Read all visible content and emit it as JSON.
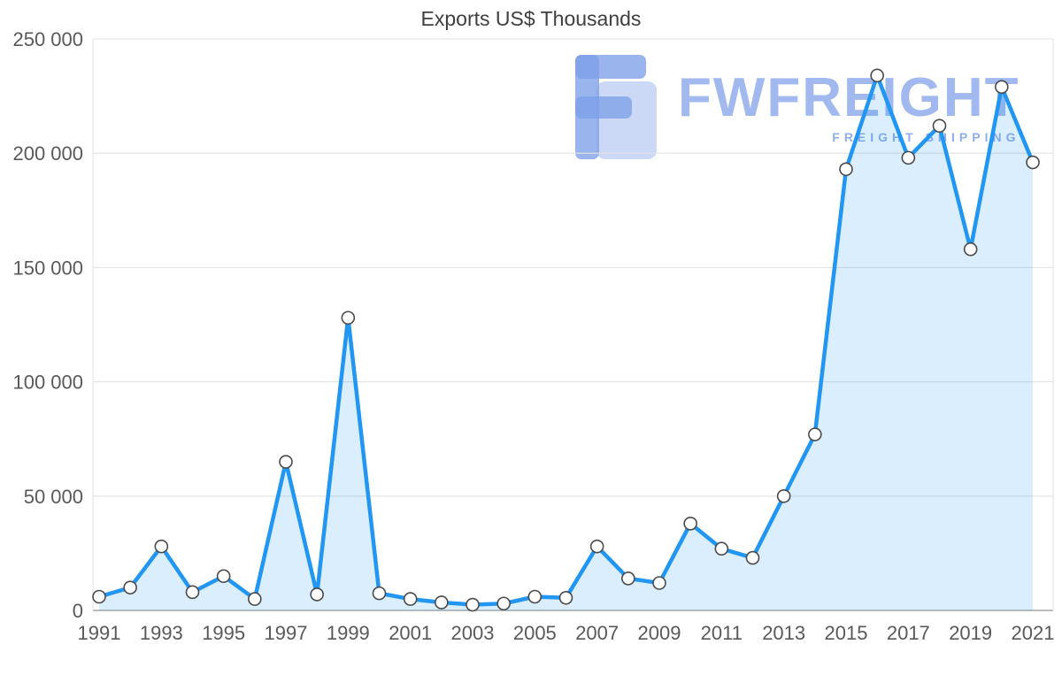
{
  "chart_data": {
    "type": "line",
    "title": "Exports US$ Thousands",
    "x": [
      1991,
      1992,
      1993,
      1994,
      1995,
      1996,
      1997,
      1998,
      1999,
      2000,
      2001,
      2002,
      2003,
      2004,
      2005,
      2006,
      2007,
      2008,
      2009,
      2010,
      2011,
      2012,
      2013,
      2014,
      2015,
      2016,
      2017,
      2018,
      2019,
      2020,
      2021
    ],
    "series": [
      {
        "name": "Exports US$ Thousands",
        "values": [
          6000,
          10000,
          28000,
          8000,
          15000,
          5000,
          65000,
          7000,
          128000,
          7500,
          5000,
          3500,
          2500,
          3000,
          6000,
          5500,
          28000,
          14000,
          12000,
          38000,
          27000,
          23000,
          50000,
          77000,
          193000,
          234000,
          198000,
          212000,
          158000,
          229000,
          196000
        ]
      }
    ],
    "xlabel": "",
    "ylabel": "",
    "ylim": [
      0,
      250000
    ],
    "ytick_step": 50000,
    "ytick_labels": [
      "0",
      "50 000",
      "100 000",
      "150 000",
      "200 000",
      "250 000"
    ],
    "xtick_step": 2,
    "xtick_labels": [
      "1991",
      "1993",
      "1995",
      "1997",
      "1999",
      "2001",
      "2003",
      "2005",
      "2007",
      "2009",
      "2011",
      "2013",
      "2015",
      "2017",
      "2019",
      "2021"
    ],
    "grid": true,
    "legend_position": "none",
    "line_color": "#2196f3",
    "area_fill_color": "rgba(33,150,243,0.16)",
    "marker": {
      "shape": "circle",
      "fill": "#ffffff",
      "stroke": "#4a4a4a"
    }
  },
  "watermark": {
    "brand": "FWFREIGHT",
    "tagline": "FREIGHT SHIPPING",
    "logo_icon": "fwfreight-logo",
    "color": "#7d9fe8"
  }
}
